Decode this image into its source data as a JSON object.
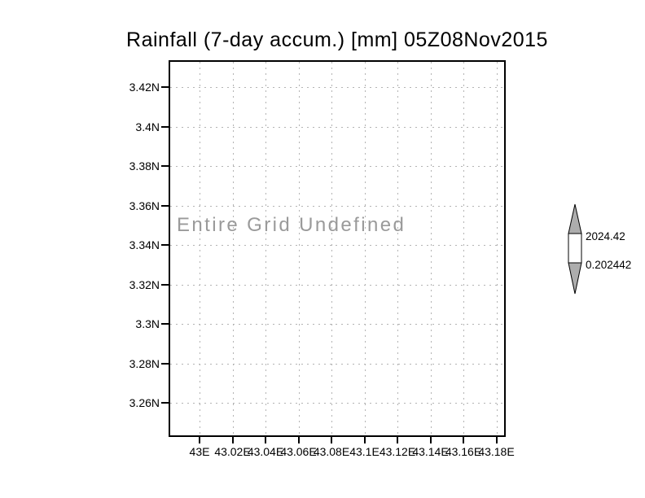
{
  "title": "Rainfall (7-day accum.) [mm] 05Z08Nov2015",
  "annotation": "Entire Grid Undefined",
  "y_axis": {
    "labels": [
      "3.42N",
      "3.4N",
      "3.38N",
      "3.36N",
      "3.34N",
      "3.32N",
      "3.3N",
      "3.28N",
      "3.26N"
    ]
  },
  "x_axis": {
    "labels": [
      "43E",
      "43.02E",
      "43.04E",
      "43.06E",
      "43.08E",
      "43.1E",
      "43.12E",
      "43.14E",
      "43.16E",
      "43.18E"
    ]
  },
  "colorbar": {
    "upper_label": "2024.42",
    "lower_label": "0.202442"
  },
  "colors": {
    "background": "#ffffff",
    "text": "#000000",
    "frame": "#000000",
    "grid": "#b3b3b3",
    "annotation": "#9a9a9a",
    "colorbar_fill": "#adadad"
  },
  "chart_data": {
    "type": "heatmap",
    "title": "Rainfall (7-day accum.) [mm] 05Z08Nov2015",
    "x_tick_labels": [
      "43E",
      "43.02E",
      "43.04E",
      "43.06E",
      "43.08E",
      "43.1E",
      "43.12E",
      "43.14E",
      "43.16E",
      "43.18E"
    ],
    "y_tick_labels": [
      "3.42N",
      "3.4N",
      "3.38N",
      "3.36N",
      "3.34N",
      "3.32N",
      "3.3N",
      "3.28N",
      "3.26N"
    ],
    "x_axis_units": "degrees east longitude",
    "y_axis_units": "degrees north latitude",
    "values": null,
    "annotation": "Entire Grid Undefined",
    "colorbar_min": 0.202442,
    "colorbar_max": 2024.42,
    "grid": true,
    "legend_position": "right"
  }
}
